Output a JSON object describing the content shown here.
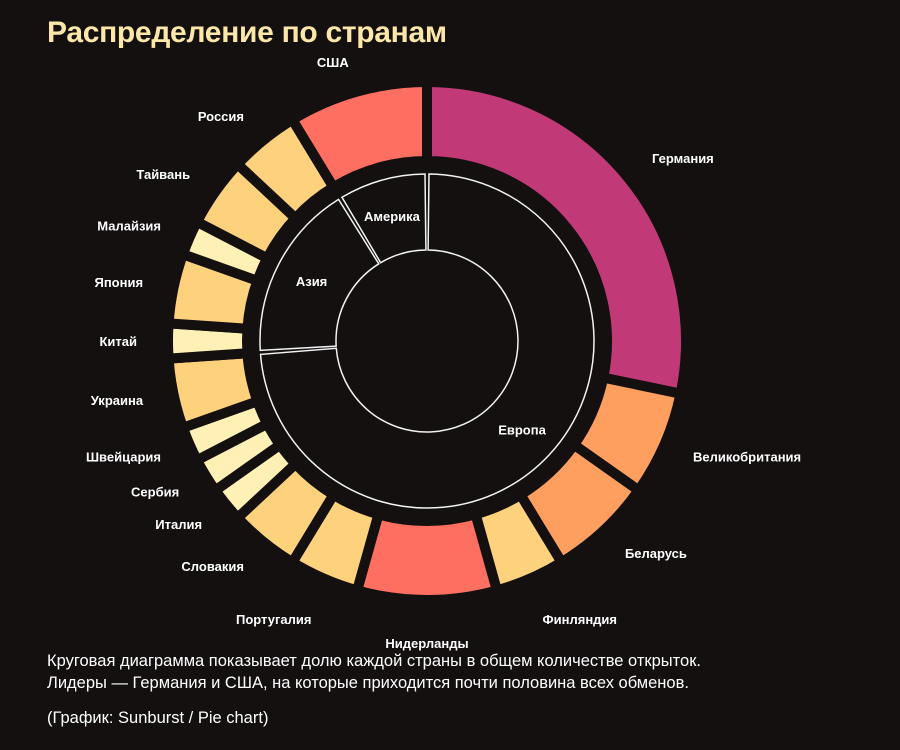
{
  "title": "Распределение по странам",
  "chart_data": {
    "type": "sunburst",
    "title": "Распределение по странам",
    "units": "relative share (countries)",
    "total": 46,
    "groups": [
      {
        "name": "Европа",
        "countries": [
          {
            "name": "Германия",
            "value": 13,
            "color": "#c13a77"
          },
          {
            "name": "Великобритания",
            "value": 3,
            "color": "#fe9f5f"
          },
          {
            "name": "Беларусь",
            "value": 3,
            "color": "#fe9f5f"
          },
          {
            "name": "Финляндия",
            "value": 2,
            "color": "#fed17d"
          },
          {
            "name": "Нидерланды",
            "value": 4,
            "color": "#fe6f61"
          },
          {
            "name": "Португалия",
            "value": 2,
            "color": "#fed17d"
          },
          {
            "name": "Словакия",
            "value": 2,
            "color": "#fed17d"
          },
          {
            "name": "Италия",
            "value": 1,
            "color": "#fff1b5"
          },
          {
            "name": "Сербия",
            "value": 1,
            "color": "#fff1b5"
          },
          {
            "name": "Швейцария",
            "value": 1,
            "color": "#fff1b5"
          },
          {
            "name": "Украина",
            "value": 2,
            "color": "#fed17d"
          }
        ]
      },
      {
        "name": "Азия",
        "countries": [
          {
            "name": "Китай",
            "value": 1,
            "color": "#fff1b5"
          },
          {
            "name": "Япония",
            "value": 2,
            "color": "#fed17d"
          },
          {
            "name": "Малайзия",
            "value": 1,
            "color": "#fff1b5"
          },
          {
            "name": "Тайвань",
            "value": 2,
            "color": "#fed17d"
          },
          {
            "name": "Россия",
            "value": 2,
            "color": "#fed17d"
          }
        ]
      },
      {
        "name": "Америка",
        "countries": [
          {
            "name": "США",
            "value": 4,
            "color": "#fe6f61"
          }
        ]
      }
    ]
  },
  "caption": {
    "line1": "Круговая диаграмма показывает долю каждой страны в общем количестве открыток.",
    "line2": "Лидеры — Германия и США, на которые приходится почти половина всех обменов.",
    "source": "(График: Sunburst / Pie chart)"
  }
}
